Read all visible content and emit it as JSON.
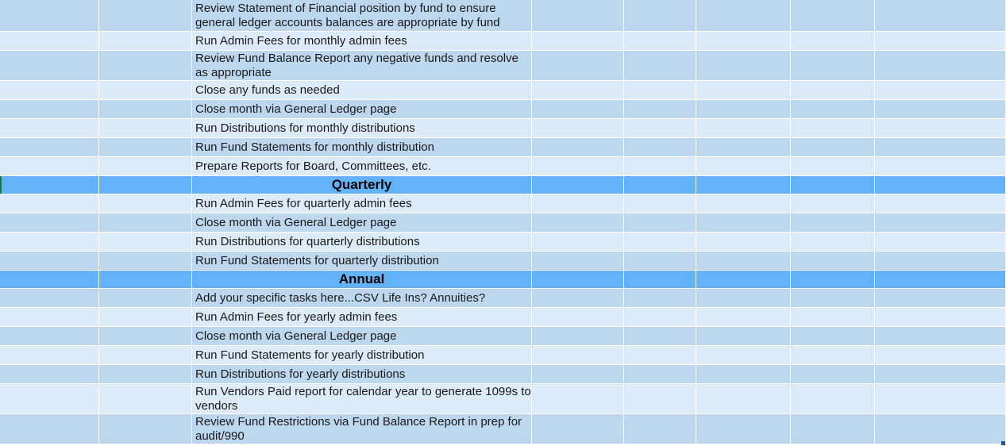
{
  "sheet": {
    "rows": [
      {
        "kind": "task",
        "shade": "dark",
        "text": "Review Statement of Financial position by fund to ensure general ledger accounts balances are appropriate by fund"
      },
      {
        "kind": "task",
        "shade": "light",
        "text": "Run Admin Fees for monthly admin fees"
      },
      {
        "kind": "task",
        "shade": "dark",
        "text": "Review Fund Balance Report any negative funds and resolve as appropriate"
      },
      {
        "kind": "task",
        "shade": "light",
        "text": "Close any funds as needed"
      },
      {
        "kind": "task",
        "shade": "dark",
        "text": "Close month via General Ledger page"
      },
      {
        "kind": "task",
        "shade": "light",
        "text": "Run Distributions for monthly distributions"
      },
      {
        "kind": "task",
        "shade": "dark",
        "text": "Run Fund Statements for monthly distribution"
      },
      {
        "kind": "task",
        "shade": "light",
        "text": "Prepare Reports for Board, Committees, etc."
      },
      {
        "kind": "header",
        "shade": "header",
        "text": "Quarterly"
      },
      {
        "kind": "task",
        "shade": "light",
        "text": "Run Admin Fees for quarterly admin fees"
      },
      {
        "kind": "task",
        "shade": "dark",
        "text": "Close month via General Ledger page"
      },
      {
        "kind": "task",
        "shade": "light",
        "text": "Run Distributions for quarterly distributions"
      },
      {
        "kind": "task",
        "shade": "dark",
        "text": "Run Fund Statements for quarterly distribution"
      },
      {
        "kind": "header",
        "shade": "header",
        "text": "Annual"
      },
      {
        "kind": "task",
        "shade": "dark",
        "text": "Add your specific tasks here...CSV Life Ins?  Annuities?"
      },
      {
        "kind": "task",
        "shade": "light",
        "text": "Run Admin Fees for yearly admin fees"
      },
      {
        "kind": "task",
        "shade": "dark",
        "text": "Close month via General Ledger page"
      },
      {
        "kind": "task",
        "shade": "light",
        "text": "Run Fund Statements for yearly distribution"
      },
      {
        "kind": "task",
        "shade": "dark",
        "text": "Run Distributions for yearly distributions"
      },
      {
        "kind": "task",
        "shade": "light",
        "text": "Run Vendors Paid report for calendar year to generate 1099s to vendors"
      },
      {
        "kind": "task",
        "shade": "dark",
        "text": "Review Fund Restrictions via Fund Balance Report in prep for audit/990"
      }
    ]
  },
  "colors": {
    "row_dark": "#bcd7ee",
    "row_light": "#ddeaf7",
    "section_header": "#62b3f8",
    "selection_marker": "#1b7a3e",
    "fill_handle": "#1a56a8"
  }
}
